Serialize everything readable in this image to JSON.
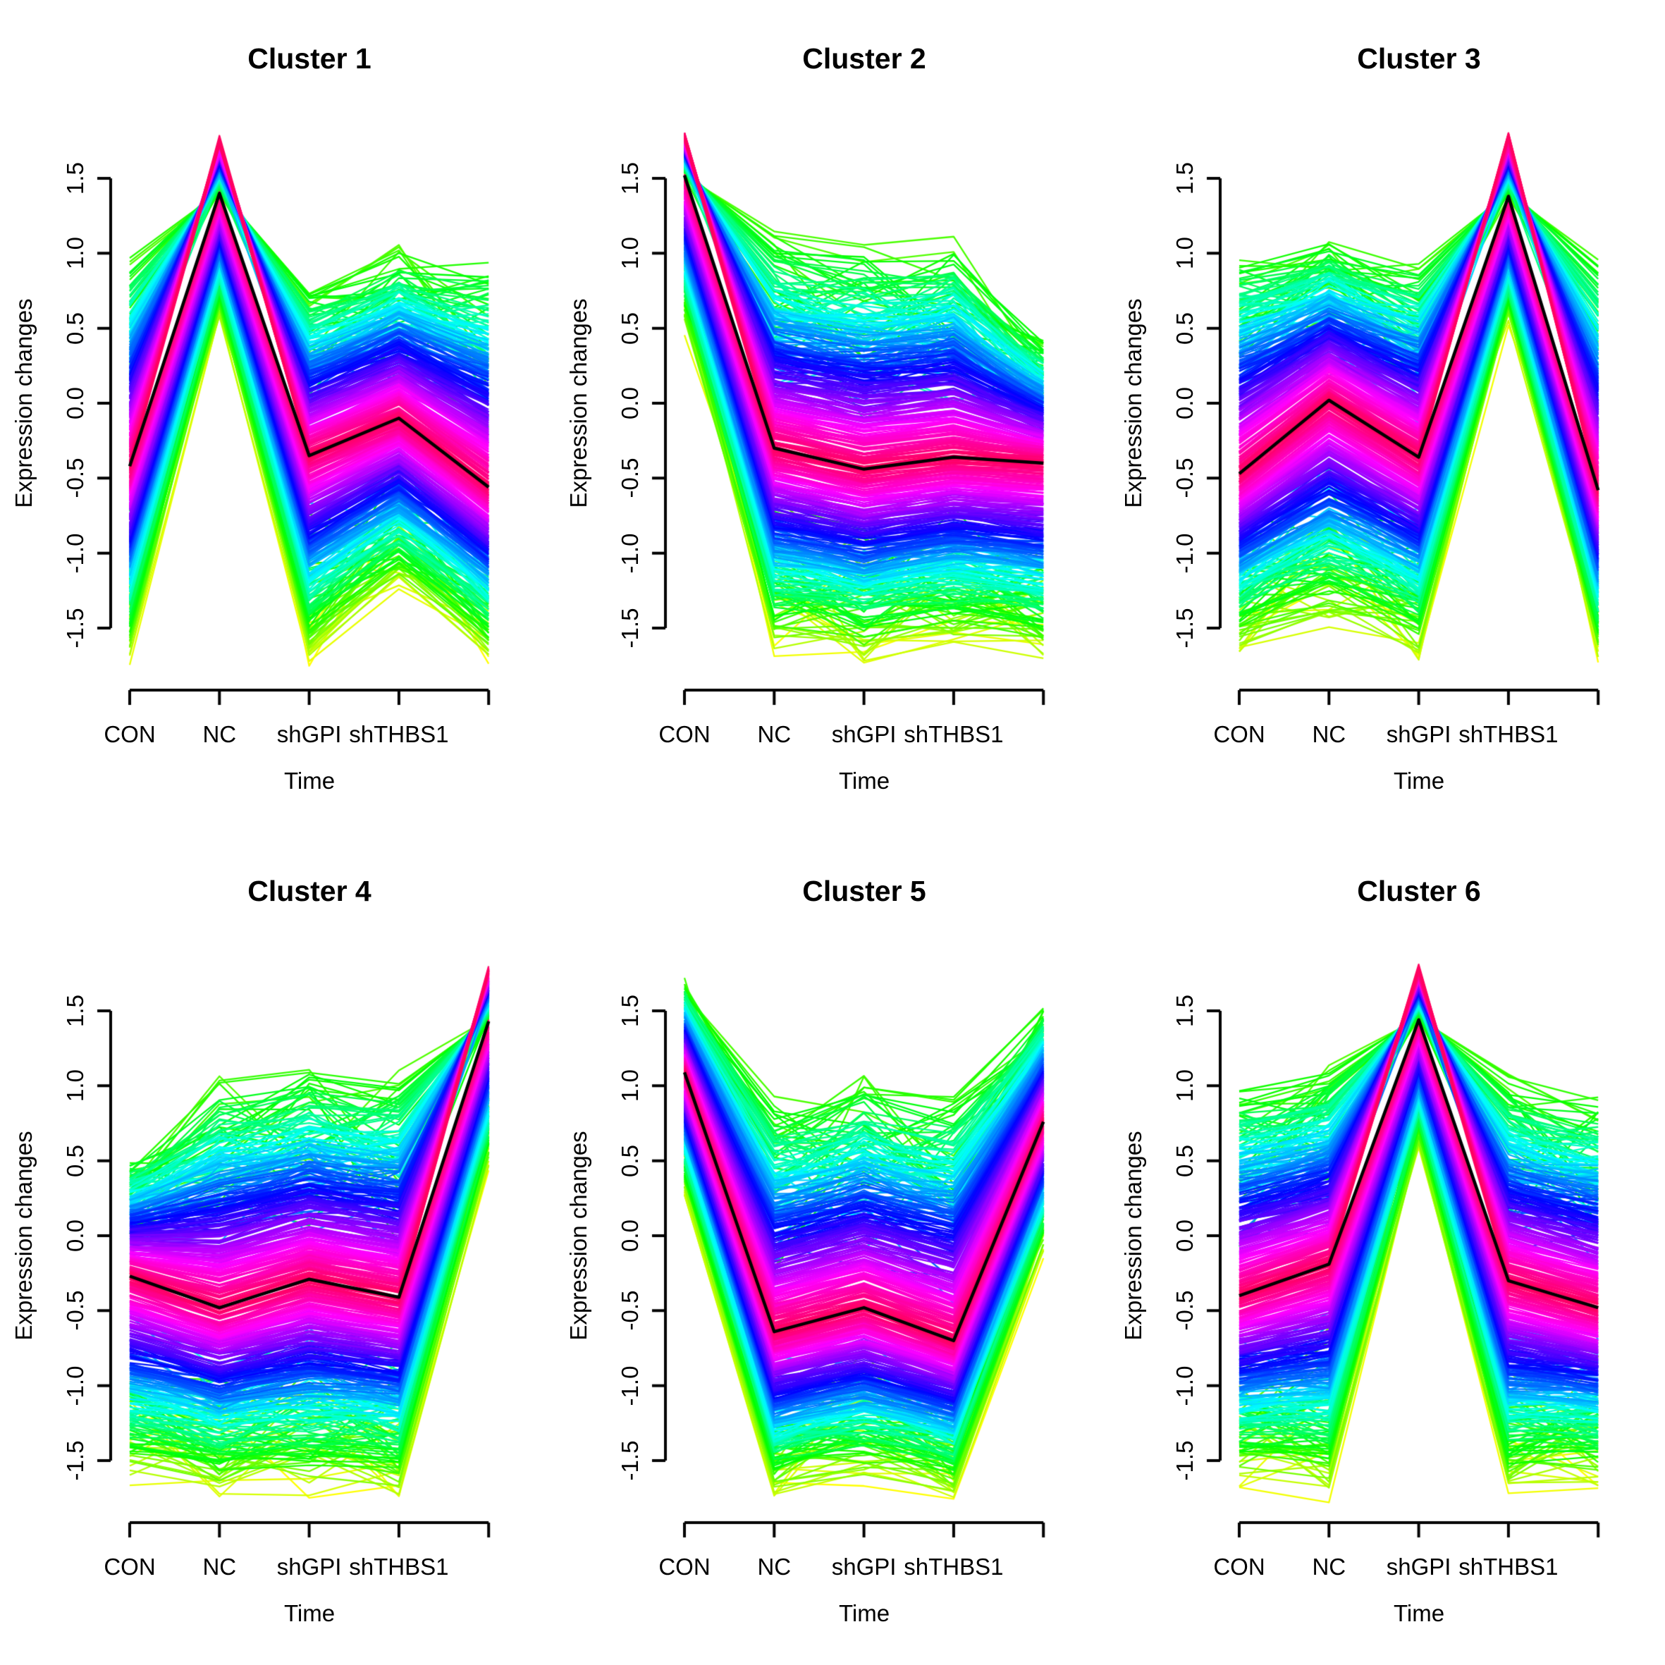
{
  "figure": {
    "background": "#ffffff",
    "text_color": "#000000",
    "rows": 2,
    "cols": 3
  },
  "chart_data": {
    "type": "line",
    "description": "Six fuzzy-clustering expression-profile panels; each shows many gene trajectories colored by cluster membership (yellow/green = low membership, cyan/blue = mid, magenta/pink = high) around a black cluster-mean line.",
    "xlabel": "Time",
    "ylabel": "Expression changes",
    "categories": [
      "CON",
      "NC",
      "shGPI",
      "shTHBS1"
    ],
    "x_positions": [
      1,
      2,
      3,
      4,
      5
    ],
    "x_tick_labels": [
      "CON",
      "NC",
      "shGPI",
      "shTHBS1",
      ""
    ],
    "y_tick_labels": [
      "-1.5",
      "-1.0",
      "-0.5",
      "0.0",
      "0.5",
      "1.0",
      "1.5"
    ],
    "y_ticks": [
      -1.5,
      -1.0,
      -0.5,
      0.0,
      0.5,
      1.0,
      1.5
    ],
    "ylim": [
      -1.85,
      1.85
    ],
    "grid": false,
    "legend": "none",
    "mean_line_color": "#000000",
    "membership_palette": [
      "#ffff00",
      "#00ff00",
      "#00ffff",
      "#0000ff",
      "#8000ff",
      "#ff00ff",
      "#ff0066"
    ],
    "clusters": [
      {
        "title": "Cluster 1",
        "mean": [
          -0.42,
          1.4,
          -0.35,
          -0.1,
          -0.56
        ],
        "upper": [
          1.02,
          1.78,
          0.8,
          1.05,
          1.0
        ],
        "lower": [
          -1.76,
          0.53,
          -1.76,
          -1.28,
          -1.76
        ],
        "inverted": [
          false,
          true,
          false,
          false,
          false
        ]
      },
      {
        "title": "Cluster 2",
        "mean": [
          1.52,
          -0.3,
          -0.44,
          -0.36,
          -0.4
        ],
        "upper": [
          1.8,
          1.17,
          1.1,
          1.15,
          0.45
        ],
        "lower": [
          0.45,
          -1.7,
          -1.78,
          -1.66,
          -1.76
        ],
        "inverted": [
          true,
          false,
          false,
          false,
          false
        ]
      },
      {
        "title": "Cluster 3",
        "mean": [
          -0.47,
          0.02,
          -0.36,
          1.38,
          -0.58
        ],
        "upper": [
          1.05,
          1.15,
          1.02,
          1.8,
          1.02
        ],
        "lower": [
          -1.7,
          -1.55,
          -1.76,
          0.5,
          -1.76
        ],
        "inverted": [
          false,
          false,
          false,
          true,
          false
        ]
      },
      {
        "title": "Cluster 4",
        "mean": [
          -0.27,
          -0.48,
          -0.29,
          -0.41,
          1.43
        ],
        "upper": [
          0.55,
          1.1,
          1.17,
          1.13,
          1.8
        ],
        "lower": [
          -1.7,
          -1.78,
          -1.78,
          -1.78,
          0.42
        ],
        "inverted": [
          false,
          false,
          false,
          false,
          true
        ]
      },
      {
        "title": "Cluster 5",
        "mean": [
          1.09,
          -0.64,
          -0.48,
          -0.7,
          0.76
        ],
        "upper": [
          1.72,
          0.95,
          1.1,
          1.02,
          1.55
        ],
        "lower": [
          0.25,
          -1.78,
          -1.7,
          -1.78,
          -0.15
        ],
        "inverted": [
          false,
          false,
          false,
          false,
          false
        ]
      },
      {
        "title": "Cluster 6",
        "mean": [
          -0.4,
          -0.19,
          1.44,
          -0.3,
          -0.48
        ],
        "upper": [
          1.07,
          1.17,
          1.8,
          1.11,
          1.0
        ],
        "lower": [
          -1.7,
          -1.78,
          0.54,
          -1.78,
          -1.7
        ],
        "inverted": [
          false,
          false,
          true,
          false,
          false
        ]
      }
    ]
  }
}
